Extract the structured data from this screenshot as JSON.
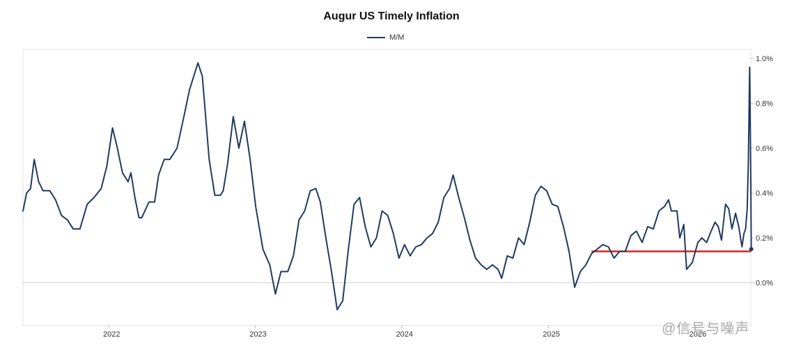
{
  "chart_data": {
    "type": "line",
    "title": "Augur US Timely Inflation",
    "xlabel": "",
    "ylabel": "",
    "legend_position": "top-center",
    "grid": false,
    "ylim": [
      -0.0019,
      0.0104
    ],
    "xlim": [
      "2021-06-01",
      "2026-05-20"
    ],
    "y_ticks": [
      {
        "value": 0.0,
        "label": "0.0%"
      },
      {
        "value": 0.002,
        "label": "0.2%"
      },
      {
        "value": 0.004,
        "label": "0.4%"
      },
      {
        "value": 0.006,
        "label": "0.6%"
      },
      {
        "value": 0.008,
        "label": "0.8%"
      },
      {
        "value": 0.01,
        "label": "1.0%"
      }
    ],
    "x_ticks": [
      {
        "value": "2022-01-01",
        "label": "2022"
      },
      {
        "value": "2023-01-01",
        "label": "2023"
      },
      {
        "value": "2024-01-01",
        "label": "2024"
      },
      {
        "value": "2025-01-01",
        "label": "2025"
      },
      {
        "value": "2026-01-01",
        "label": "2026"
      }
    ],
    "series": [
      {
        "name": "M/M",
        "color": "#1f3a5f",
        "points": [
          [
            "2021-06-01",
            0.0032
          ],
          [
            "2021-06-10",
            0.004
          ],
          [
            "2021-06-20",
            0.0042
          ],
          [
            "2021-06-29",
            0.0055
          ],
          [
            "2021-07-10",
            0.0045
          ],
          [
            "2021-07-21",
            0.0041
          ],
          [
            "2021-08-07",
            0.0041
          ],
          [
            "2021-08-21",
            0.0037
          ],
          [
            "2021-09-05",
            0.003
          ],
          [
            "2021-09-20",
            0.0028
          ],
          [
            "2021-10-04",
            0.0024
          ],
          [
            "2021-10-21",
            0.0024
          ],
          [
            "2021-11-08",
            0.0035
          ],
          [
            "2021-11-25",
            0.0038
          ],
          [
            "2021-12-13",
            0.0042
          ],
          [
            "2021-12-27",
            0.0052
          ],
          [
            "2022-01-10",
            0.0069
          ],
          [
            "2022-01-21",
            0.0061
          ],
          [
            "2022-02-04",
            0.0049
          ],
          [
            "2022-02-18",
            0.0045
          ],
          [
            "2022-02-25",
            0.0049
          ],
          [
            "2022-03-07",
            0.0038
          ],
          [
            "2022-03-17",
            0.0029
          ],
          [
            "2022-03-24",
            0.0029
          ],
          [
            "2022-04-11",
            0.0036
          ],
          [
            "2022-04-25",
            0.0036
          ],
          [
            "2022-05-05",
            0.0048
          ],
          [
            "2022-05-19",
            0.0055
          ],
          [
            "2022-06-02",
            0.0055
          ],
          [
            "2022-06-20",
            0.006
          ],
          [
            "2022-07-07",
            0.0074
          ],
          [
            "2022-07-21",
            0.0086
          ],
          [
            "2022-08-11",
            0.0098
          ],
          [
            "2022-08-22",
            0.0092
          ],
          [
            "2022-09-08",
            0.0055
          ],
          [
            "2022-09-22",
            0.0039
          ],
          [
            "2022-10-06",
            0.0039
          ],
          [
            "2022-10-13",
            0.0041
          ],
          [
            "2022-10-24",
            0.0053
          ],
          [
            "2022-11-07",
            0.0074
          ],
          [
            "2022-11-21",
            0.006
          ],
          [
            "2022-12-05",
            0.0072
          ],
          [
            "2022-12-19",
            0.0055
          ],
          [
            "2023-01-02",
            0.0034
          ],
          [
            "2023-01-20",
            0.0015
          ],
          [
            "2023-02-06",
            0.0008
          ],
          [
            "2023-02-20",
            -0.0005
          ],
          [
            "2023-03-06",
            0.0005
          ],
          [
            "2023-03-23",
            0.0005
          ],
          [
            "2023-04-06",
            0.0012
          ],
          [
            "2023-04-20",
            0.0028
          ],
          [
            "2023-05-04",
            0.0032
          ],
          [
            "2023-05-18",
            0.0041
          ],
          [
            "2023-06-01",
            0.0042
          ],
          [
            "2023-06-12",
            0.0036
          ],
          [
            "2023-06-26",
            0.002
          ],
          [
            "2023-07-10",
            0.0005
          ],
          [
            "2023-07-24",
            -0.0012
          ],
          [
            "2023-08-07",
            -0.0008
          ],
          [
            "2023-08-21",
            0.0015
          ],
          [
            "2023-09-04",
            0.0035
          ],
          [
            "2023-09-18",
            0.0038
          ],
          [
            "2023-10-02",
            0.0025
          ],
          [
            "2023-10-16",
            0.0016
          ],
          [
            "2023-10-30",
            0.002
          ],
          [
            "2023-11-13",
            0.0032
          ],
          [
            "2023-11-27",
            0.003
          ],
          [
            "2023-12-11",
            0.0022
          ],
          [
            "2023-12-25",
            0.0011
          ],
          [
            "2024-01-08",
            0.0017
          ],
          [
            "2024-01-22",
            0.0012
          ],
          [
            "2024-02-05",
            0.0016
          ],
          [
            "2024-02-19",
            0.0017
          ],
          [
            "2024-03-04",
            0.002
          ],
          [
            "2024-03-18",
            0.0022
          ],
          [
            "2024-04-01",
            0.0027
          ],
          [
            "2024-04-15",
            0.0038
          ],
          [
            "2024-04-29",
            0.0042
          ],
          [
            "2024-05-08",
            0.0048
          ],
          [
            "2024-05-22",
            0.0038
          ],
          [
            "2024-06-05",
            0.0029
          ],
          [
            "2024-06-19",
            0.0019
          ],
          [
            "2024-07-03",
            0.0011
          ],
          [
            "2024-07-17",
            0.0008
          ],
          [
            "2024-07-31",
            0.0006
          ],
          [
            "2024-08-14",
            0.0008
          ],
          [
            "2024-08-28",
            0.0006
          ],
          [
            "2024-09-06",
            0.0002
          ],
          [
            "2024-09-20",
            0.0012
          ],
          [
            "2024-10-04",
            0.0011
          ],
          [
            "2024-10-18",
            0.002
          ],
          [
            "2024-11-01",
            0.0017
          ],
          [
            "2024-11-15",
            0.0027
          ],
          [
            "2024-11-29",
            0.0039
          ],
          [
            "2024-12-13",
            0.0043
          ],
          [
            "2024-12-27",
            0.0041
          ],
          [
            "2025-01-10",
            0.0035
          ],
          [
            "2025-01-24",
            0.0034
          ],
          [
            "2025-02-07",
            0.0025
          ],
          [
            "2025-02-21",
            0.0014
          ],
          [
            "2025-03-07",
            -0.0002
          ],
          [
            "2025-03-21",
            0.0005
          ],
          [
            "2025-04-04",
            0.0008
          ],
          [
            "2025-04-18",
            0.0013
          ],
          [
            "2025-05-02",
            0.0015
          ],
          [
            "2025-05-16",
            0.0017
          ],
          [
            "2025-05-30",
            0.0016
          ],
          [
            "2025-06-13",
            0.0011
          ],
          [
            "2025-06-27",
            0.0014
          ],
          [
            "2025-07-11",
            0.0014
          ],
          [
            "2025-07-25",
            0.0021
          ],
          [
            "2025-08-08",
            0.0023
          ],
          [
            "2025-08-22",
            0.0018
          ],
          [
            "2025-09-05",
            0.0025
          ],
          [
            "2025-09-19",
            0.0024
          ],
          [
            "2025-10-03",
            0.0032
          ],
          [
            "2025-10-17",
            0.0034
          ],
          [
            "2025-10-27",
            0.0037
          ],
          [
            "2025-11-03",
            0.0032
          ],
          [
            "2025-11-17",
            0.0032
          ],
          [
            "2025-11-24",
            0.002
          ],
          [
            "2025-12-04",
            0.0026
          ],
          [
            "2025-12-11",
            0.0006
          ],
          [
            "2025-12-25",
            0.0009
          ],
          [
            "2026-01-08",
            0.0018
          ],
          [
            "2026-01-18",
            0.002
          ],
          [
            "2026-01-30",
            0.0018
          ],
          [
            "2026-02-10",
            0.0023
          ],
          [
            "2026-02-20",
            0.0027
          ],
          [
            "2026-02-28",
            0.0025
          ],
          [
            "2026-03-08",
            0.0019
          ],
          [
            "2026-03-18",
            0.0035
          ],
          [
            "2026-03-26",
            0.0033
          ],
          [
            "2026-04-03",
            0.0024
          ],
          [
            "2026-04-12",
            0.0031
          ],
          [
            "2026-04-20",
            0.0025
          ],
          [
            "2026-04-28",
            0.0016
          ],
          [
            "2026-05-03",
            0.0022
          ],
          [
            "2026-05-07",
            0.0024
          ],
          [
            "2026-05-11",
            0.0033
          ],
          [
            "2026-05-14",
            0.0054
          ],
          [
            "2026-05-16",
            0.0082
          ],
          [
            "2026-05-17",
            0.0096
          ],
          [
            "2026-05-18",
            0.0082
          ],
          [
            "2026-05-19",
            0.0065
          ],
          [
            "2026-05-20",
            0.0045
          ],
          [
            "2026-05-21",
            0.0015
          ]
        ]
      }
    ],
    "reference_line": {
      "color": "#d2232a",
      "value": 0.0014,
      "x_start": "2025-04-18",
      "x_end": "2026-05-21"
    }
  }
}
